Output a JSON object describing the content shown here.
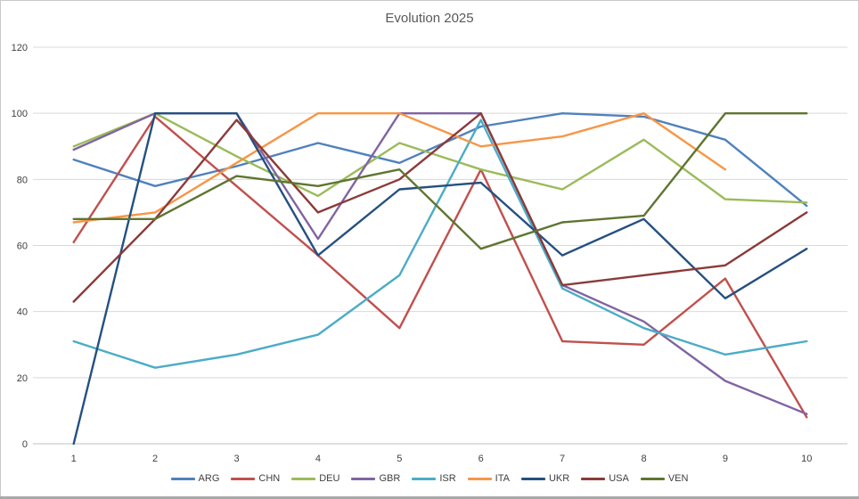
{
  "chart_data": {
    "type": "line",
    "title": "Evolution 2025",
    "x": [
      1,
      2,
      3,
      4,
      5,
      6,
      7,
      8,
      9,
      10
    ],
    "xlabel": "",
    "ylabel": "",
    "ylim": [
      0,
      120
    ],
    "ytick_step": 20,
    "yticks": [
      0,
      20,
      40,
      60,
      80,
      100,
      120
    ],
    "grid": true,
    "legend_position": "bottom",
    "series": [
      {
        "name": "ARG",
        "color": "#4F81BD",
        "values": [
          86,
          78,
          84,
          91,
          85,
          96,
          100,
          99,
          92,
          72
        ]
      },
      {
        "name": "CHN",
        "color": "#C0504D",
        "values": [
          61,
          99,
          78,
          57,
          35,
          83,
          31,
          30,
          50,
          8
        ]
      },
      {
        "name": "DEU",
        "color": "#9BBB59",
        "values": [
          90,
          100,
          87,
          75,
          91,
          83,
          77,
          92,
          74,
          73
        ]
      },
      {
        "name": "GBR",
        "color": "#8064A2",
        "values": [
          89,
          100,
          100,
          62,
          100,
          100,
          48,
          37,
          19,
          9
        ]
      },
      {
        "name": "ISR",
        "color": "#4BACC6",
        "values": [
          31,
          23,
          27,
          33,
          51,
          98,
          47,
          35,
          27,
          31
        ]
      },
      {
        "name": "ITA",
        "color": "#F79646",
        "values": [
          67,
          70,
          85,
          100,
          100,
          90,
          93,
          100,
          83,
          null
        ]
      },
      {
        "name": "UKR",
        "color": "#255080",
        "values": [
          0,
          100,
          100,
          57,
          77,
          79,
          57,
          68,
          44,
          59
        ]
      },
      {
        "name": "USA",
        "color": "#8B3A39",
        "values": [
          43,
          68,
          98,
          70,
          80,
          100,
          48,
          51,
          54,
          70
        ]
      },
      {
        "name": "VEN",
        "color": "#5F7530",
        "values": [
          68,
          68,
          81,
          78,
          83,
          59,
          67,
          69,
          100,
          100
        ]
      }
    ]
  },
  "colors": {
    "grid": "#D9D9D9",
    "axis": "#BFBFBF",
    "tick_text": "#404040",
    "title_text": "#595959",
    "frame_border": "#C9C9C9"
  }
}
